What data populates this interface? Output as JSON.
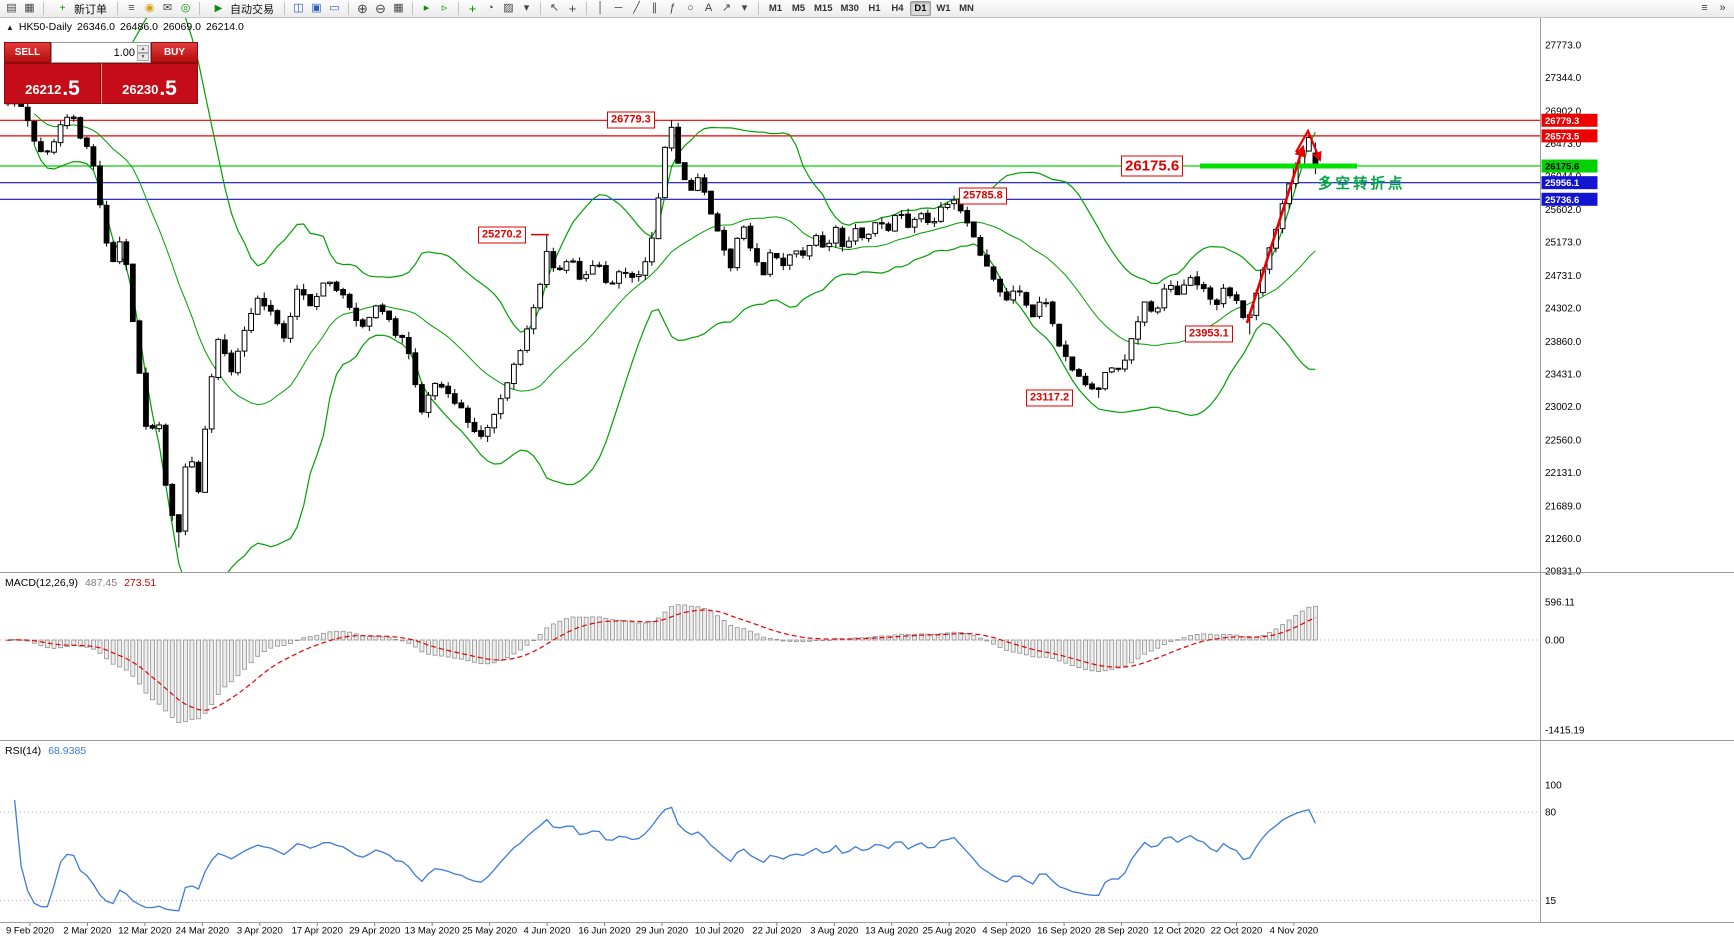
{
  "toolbar": {
    "new_order": "新订单",
    "autotrading": "自动交易",
    "timeframes": [
      "M1",
      "M5",
      "M15",
      "M30",
      "H1",
      "H4",
      "D1",
      "W1",
      "MN"
    ],
    "active_timeframe": "D1"
  },
  "icons": {
    "new_chart": "▤",
    "profiles": "▦",
    "new_order_doc": "+",
    "market_watch": "≡",
    "coin": "◉",
    "mail": "✉",
    "history": "◎",
    "autotrading_play": "▶",
    "tile_windows": "◫",
    "cascade": "▣",
    "restore": "▭",
    "zoom_in": "⊕",
    "zoom_out": "⊖",
    "grid": "▦",
    "auto_scroll": "▸",
    "chart_shift": "▹",
    "indicators_add": "+",
    "periods": "◔",
    "templates": "▨",
    "cursor": "↖",
    "crosshair": "+",
    "vline": "│",
    "hline": "─",
    "trendline": "╱",
    "channel": "∥",
    "fibonacci": "ƒ",
    "ellipse": "○",
    "text": "A",
    "arrows": "↗",
    "dropdown": "▾",
    "overflow": "»",
    "menu": "≡",
    "collapse": "▲",
    "spin_up": "▲",
    "spin_down": "▼"
  },
  "one_click": {
    "sell_label": "SELL",
    "buy_label": "BUY",
    "volume": "1.00",
    "sell_price_main": "26212",
    "sell_price_frac": ".5",
    "buy_price_main": "26230",
    "buy_price_frac": ".5"
  },
  "chart_header": {
    "symbol": "HK50-Daily",
    "open": "26346.0",
    "high": "26486.0",
    "low": "26069.0",
    "close": "26214.0"
  },
  "indicators": {
    "macd_name": "MACD(12,26,9)",
    "macd_value": "487.45",
    "macd_signal": "273.51",
    "rsi_name": "RSI(14)",
    "rsi_value": "68.9385"
  },
  "callouts": {
    "c26779": "26779.3",
    "c26175": "26175.6",
    "c25785": "25785.8",
    "c25270": "25270.2",
    "c23953": "23953.1",
    "c23117": "23117.2",
    "note": "多空转折点"
  },
  "chart_data": {
    "type": "candlestick",
    "symbol": "HK50",
    "timeframe": "Daily",
    "last_candle": {
      "open": 26346.0,
      "high": 26486.0,
      "low": 26069.0,
      "close": 26214.0
    },
    "price_axis_ticks": [
      "27773.0",
      "27344.0",
      "26902.0",
      "26473.0",
      "26044.0",
      "25602.0",
      "25173.0",
      "24731.0",
      "24302.0",
      "23860.0",
      "23431.0",
      "23002.0",
      "22560.0",
      "22131.0",
      "21689.0",
      "21260.0",
      "20831.0"
    ],
    "price_range": [
      20831.0,
      27773.0
    ],
    "horizontal_lines": [
      {
        "price": 26779.3,
        "label": "26779.3",
        "color": "#ee0000",
        "text": "#ffffff"
      },
      {
        "price": 26573.5,
        "label": "26573.5",
        "color": "#ee0000",
        "text": "#ffffff"
      },
      {
        "price": 26175.6,
        "label": "26175.6",
        "color": "#00d200",
        "text": "#000000"
      },
      {
        "price": 25956.1,
        "label": "25956.1",
        "color": "#1313d2",
        "text": "#ffffff"
      },
      {
        "price": 25736.6,
        "label": "25736.6",
        "color": "#1313d2",
        "text": "#ffffff"
      }
    ],
    "swing_points": [
      {
        "f": 0.507,
        "price": 26779.3,
        "kind": "high",
        "label": "26779.3"
      },
      {
        "f": 0.412,
        "price": 25270.2,
        "kind": "high",
        "label": "25270.2"
      },
      {
        "f": 0.724,
        "price": 25785.8,
        "kind": "high",
        "label": "25785.8"
      },
      {
        "f": 0.833,
        "price": 23117.2,
        "kind": "low",
        "label": "23117.2"
      },
      {
        "f": 0.949,
        "price": 23953.1,
        "kind": "low",
        "label": "23953.1"
      },
      {
        "f": 0.13,
        "price": 21139.0,
        "kind": "low",
        "label": ""
      }
    ],
    "anchors": [
      [
        0,
        26950
      ],
      [
        0.008,
        27120
      ],
      [
        0.018,
        26600
      ],
      [
        0.028,
        26350
      ],
      [
        0.038,
        26620
      ],
      [
        0.047,
        26880
      ],
      [
        0.056,
        26520
      ],
      [
        0.064,
        26280
      ],
      [
        0.071,
        25560
      ],
      [
        0.079,
        24880
      ],
      [
        0.087,
        25300
      ],
      [
        0.094,
        24380
      ],
      [
        0.101,
        23320
      ],
      [
        0.108,
        22480
      ],
      [
        0.114,
        23060
      ],
      [
        0.121,
        21920
      ],
      [
        0.13,
        21280
      ],
      [
        0.138,
        22520
      ],
      [
        0.145,
        21780
      ],
      [
        0.153,
        23080
      ],
      [
        0.161,
        23860
      ],
      [
        0.171,
        23460
      ],
      [
        0.181,
        24020
      ],
      [
        0.191,
        24420
      ],
      [
        0.201,
        24260
      ],
      [
        0.211,
        23920
      ],
      [
        0.221,
        24520
      ],
      [
        0.233,
        24320
      ],
      [
        0.245,
        24720
      ],
      [
        0.257,
        24460
      ],
      [
        0.269,
        23980
      ],
      [
        0.281,
        24360
      ],
      [
        0.293,
        24060
      ],
      [
        0.304,
        23860
      ],
      [
        0.316,
        22940
      ],
      [
        0.328,
        23360
      ],
      [
        0.339,
        23060
      ],
      [
        0.35,
        22880
      ],
      [
        0.361,
        22560
      ],
      [
        0.373,
        22960
      ],
      [
        0.385,
        23480
      ],
      [
        0.396,
        23920
      ],
      [
        0.405,
        24480
      ],
      [
        0.412,
        25080
      ],
      [
        0.42,
        24720
      ],
      [
        0.43,
        24980
      ],
      [
        0.44,
        24640
      ],
      [
        0.45,
        24880
      ],
      [
        0.46,
        24580
      ],
      [
        0.47,
        24780
      ],
      [
        0.48,
        24680
      ],
      [
        0.49,
        24940
      ],
      [
        0.497,
        25680
      ],
      [
        0.503,
        26480
      ],
      [
        0.507,
        26700
      ],
      [
        0.513,
        26160
      ],
      [
        0.521,
        25820
      ],
      [
        0.529,
        26060
      ],
      [
        0.537,
        25560
      ],
      [
        0.545,
        25160
      ],
      [
        0.553,
        24880
      ],
      [
        0.561,
        25380
      ],
      [
        0.569,
        25080
      ],
      [
        0.577,
        24680
      ],
      [
        0.585,
        25080
      ],
      [
        0.593,
        24820
      ],
      [
        0.601,
        25160
      ],
      [
        0.609,
        24920
      ],
      [
        0.617,
        25280
      ],
      [
        0.625,
        24980
      ],
      [
        0.633,
        25320
      ],
      [
        0.641,
        25080
      ],
      [
        0.649,
        25380
      ],
      [
        0.657,
        25180
      ],
      [
        0.665,
        25480
      ],
      [
        0.673,
        25280
      ],
      [
        0.681,
        25580
      ],
      [
        0.689,
        25380
      ],
      [
        0.697,
        25620
      ],
      [
        0.706,
        25420
      ],
      [
        0.715,
        25680
      ],
      [
        0.724,
        25740
      ],
      [
        0.733,
        25460
      ],
      [
        0.742,
        25120
      ],
      [
        0.752,
        24720
      ],
      [
        0.762,
        24420
      ],
      [
        0.772,
        24620
      ],
      [
        0.782,
        24170
      ],
      [
        0.792,
        24470
      ],
      [
        0.802,
        23920
      ],
      [
        0.812,
        23570
      ],
      [
        0.822,
        23370
      ],
      [
        0.833,
        23180
      ],
      [
        0.842,
        23560
      ],
      [
        0.851,
        23420
      ],
      [
        0.86,
        23920
      ],
      [
        0.869,
        24360
      ],
      [
        0.878,
        24220
      ],
      [
        0.887,
        24620
      ],
      [
        0.896,
        24460
      ],
      [
        0.905,
        24760
      ],
      [
        0.914,
        24560
      ],
      [
        0.923,
        24360
      ],
      [
        0.932,
        24560
      ],
      [
        0.941,
        24310
      ],
      [
        0.949,
        24130
      ],
      [
        0.956,
        24520
      ],
      [
        0.963,
        24960
      ],
      [
        0.97,
        25360
      ],
      [
        0.977,
        25820
      ],
      [
        0.984,
        26160
      ],
      [
        0.99,
        26420
      ],
      [
        0.995,
        26560
      ],
      [
        1,
        26240
      ]
    ],
    "indicator_settings": {
      "bollinger": {
        "period": 20,
        "deviation": 2
      },
      "macd": {
        "fast": 12,
        "slow": 26,
        "signal": 9
      },
      "rsi": {
        "period": 14
      }
    },
    "macd_axis": [
      "596.11",
      "0.00",
      "-1415.19"
    ],
    "rsi_axis": [
      "100",
      "80",
      "15"
    ],
    "dates": [
      "9 Feb 2020",
      "2 Mar 2020",
      "12 Mar 2020",
      "24 Mar 2020",
      "3 Apr 2020",
      "17 Apr 2020",
      "29 Apr 2020",
      "13 May 2020",
      "25 May 2020",
      "4 Jun 2020",
      "16 Jun 2020",
      "29 Jun 2020",
      "10 Jul 2020",
      "22 Jul 2020",
      "3 Aug 2020",
      "13 Aug 2020",
      "25 Aug 2020",
      "4 Sep 2020",
      "16 Sep 2020",
      "28 Sep 2020",
      "12 Oct 2020",
      "22 Oct 2020",
      "4 Nov 2020"
    ]
  }
}
